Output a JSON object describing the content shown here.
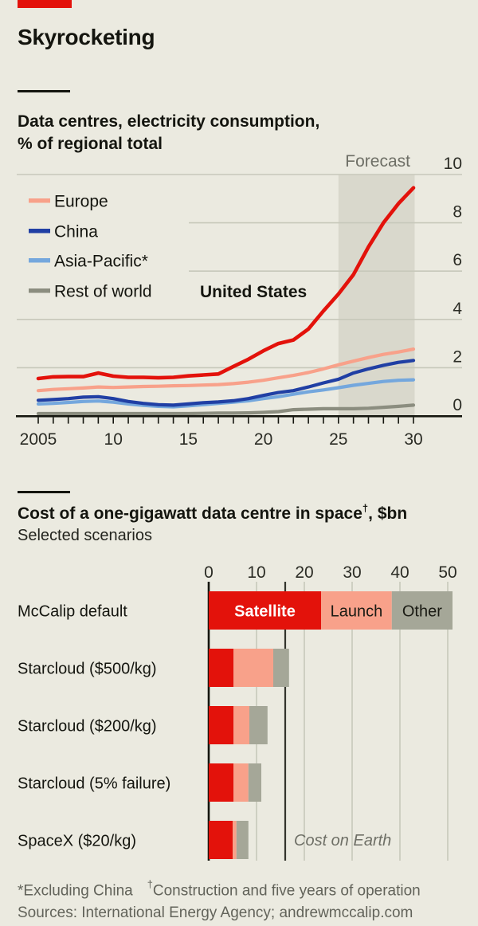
{
  "header": {
    "title": "Skyrocketing"
  },
  "colors": {
    "background": "#ebeae0",
    "brand_red": "#e3120b",
    "text": "#14150f",
    "muted_text": "#6e6f66",
    "footnote_text": "#62635a",
    "grid": "#c7c8ba",
    "axis": "#15160f",
    "forecast_band": "#d9d8cc",
    "reference_line": "#33342c",
    "us_red": "#e3120b",
    "europe_salmon": "#f8a18a",
    "china_navy": "#203fa4",
    "asia_pacific_blue": "#74a7dd",
    "rest_of_world_gray": "#8b8d7f",
    "bar_satellite": "#e3120b",
    "bar_launch": "#f8a18a",
    "bar_other": "#a5a798",
    "satellite_label_color": "#ffffff",
    "segment_label_color": "#1a1b14"
  },
  "line_chart": {
    "subtitle_line1": "Data centres, electricity consumption,",
    "subtitle_line2": "% of regional total",
    "forecast_label": "Forecast",
    "inline_label": "United States",
    "legend": [
      "Europe",
      "China",
      "Asia-Pacific*",
      "Rest of world"
    ]
  },
  "bar_chart": {
    "title_main": "Cost of a one-gigawatt data centre in space",
    "title_dagger": "†",
    "title_suffix": ", $bn",
    "subtitle": "Selected scenarios"
  },
  "footnotes": {
    "star": "*Excluding China",
    "dagger_symbol": "†",
    "dagger_text": "Construction and five years of operation",
    "sources": "Sources: International Energy Agency; andrewmccalip.com"
  },
  "chart_data": [
    {
      "type": "line",
      "title": "Data centres, electricity consumption, % of regional total",
      "x": [
        2005,
        2006,
        2007,
        2008,
        2009,
        2010,
        2011,
        2012,
        2013,
        2014,
        2015,
        2016,
        2017,
        2018,
        2019,
        2020,
        2021,
        2022,
        2023,
        2024,
        2025,
        2026,
        2027,
        2028,
        2029,
        2030
      ],
      "xticks": [
        2005,
        2010,
        2015,
        2020,
        2025,
        2030
      ],
      "xtick_labels": [
        "2005",
        "10",
        "15",
        "20",
        "25",
        "30"
      ],
      "ylim": [
        0,
        10
      ],
      "yticks": [
        0,
        2,
        4,
        6,
        8,
        10
      ],
      "grid": "horizontal",
      "forecast_start": 2025,
      "forecast_end": 2030,
      "legend_position": "top-left-inside",
      "series": [
        {
          "name": "Europe",
          "color": "#f8a18a",
          "in_legend": true,
          "values": [
            1.05,
            1.1,
            1.13,
            1.16,
            1.2,
            1.18,
            1.2,
            1.22,
            1.23,
            1.25,
            1.26,
            1.28,
            1.3,
            1.34,
            1.4,
            1.48,
            1.58,
            1.68,
            1.8,
            1.95,
            2.12,
            2.27,
            2.42,
            2.55,
            2.65,
            2.77
          ]
        },
        {
          "name": "Asia-Pacific*",
          "color": "#74a7dd",
          "in_legend": true,
          "values": [
            0.5,
            0.52,
            0.56,
            0.6,
            0.62,
            0.57,
            0.5,
            0.44,
            0.4,
            0.38,
            0.42,
            0.47,
            0.52,
            0.57,
            0.63,
            0.72,
            0.8,
            0.9,
            1.0,
            1.08,
            1.17,
            1.27,
            1.35,
            1.43,
            1.48,
            1.5
          ]
        },
        {
          "name": "China",
          "color": "#203fa4",
          "in_legend": true,
          "values": [
            0.65,
            0.68,
            0.72,
            0.78,
            0.8,
            0.72,
            0.6,
            0.52,
            0.47,
            0.45,
            0.5,
            0.55,
            0.58,
            0.63,
            0.72,
            0.85,
            0.97,
            1.05,
            1.2,
            1.37,
            1.52,
            1.78,
            1.95,
            2.1,
            2.22,
            2.3
          ]
        },
        {
          "name": "Rest of world",
          "color": "#8b8d7f",
          "in_legend": true,
          "values": [
            0.1,
            0.1,
            0.1,
            0.1,
            0.1,
            0.1,
            0.1,
            0.1,
            0.1,
            0.1,
            0.1,
            0.11,
            0.12,
            0.12,
            0.13,
            0.15,
            0.18,
            0.26,
            0.28,
            0.3,
            0.3,
            0.3,
            0.32,
            0.36,
            0.4,
            0.45
          ]
        },
        {
          "name": "United States",
          "color": "#e3120b",
          "in_legend": false,
          "values": [
            1.55,
            1.62,
            1.63,
            1.63,
            1.78,
            1.65,
            1.6,
            1.6,
            1.58,
            1.6,
            1.66,
            1.7,
            1.74,
            2.05,
            2.35,
            2.7,
            3.0,
            3.15,
            3.6,
            4.35,
            5.05,
            5.85,
            7.0,
            8.0,
            8.8,
            9.45
          ]
        }
      ]
    },
    {
      "type": "bar",
      "orientation": "horizontal",
      "stacked": true,
      "title": "Cost of a one-gigawatt data centre in space†, $bn",
      "subtitle": "Selected scenarios",
      "categories": [
        "McCalip default",
        "Starcloud ($500/kg)",
        "Starcloud ($200/kg)",
        "Starcloud (5% failure)",
        "SpaceX ($20/kg)"
      ],
      "series": [
        {
          "name": "Satellite",
          "color": "#e3120b",
          "values": [
            23.5,
            5.2,
            5.2,
            5.2,
            5.0
          ]
        },
        {
          "name": "Launch",
          "color": "#f8a18a",
          "values": [
            14.8,
            8.3,
            3.3,
            3.1,
            0.8
          ]
        },
        {
          "name": "Other",
          "color": "#a5a798",
          "values": [
            12.7,
            3.3,
            3.8,
            2.7,
            2.5
          ]
        }
      ],
      "xticks": [
        0,
        10,
        20,
        30,
        40,
        50
      ],
      "xlim": [
        0,
        53
      ],
      "grid": "vertical",
      "reference_line": {
        "label": "Cost on Earth",
        "value": 16
      }
    }
  ]
}
